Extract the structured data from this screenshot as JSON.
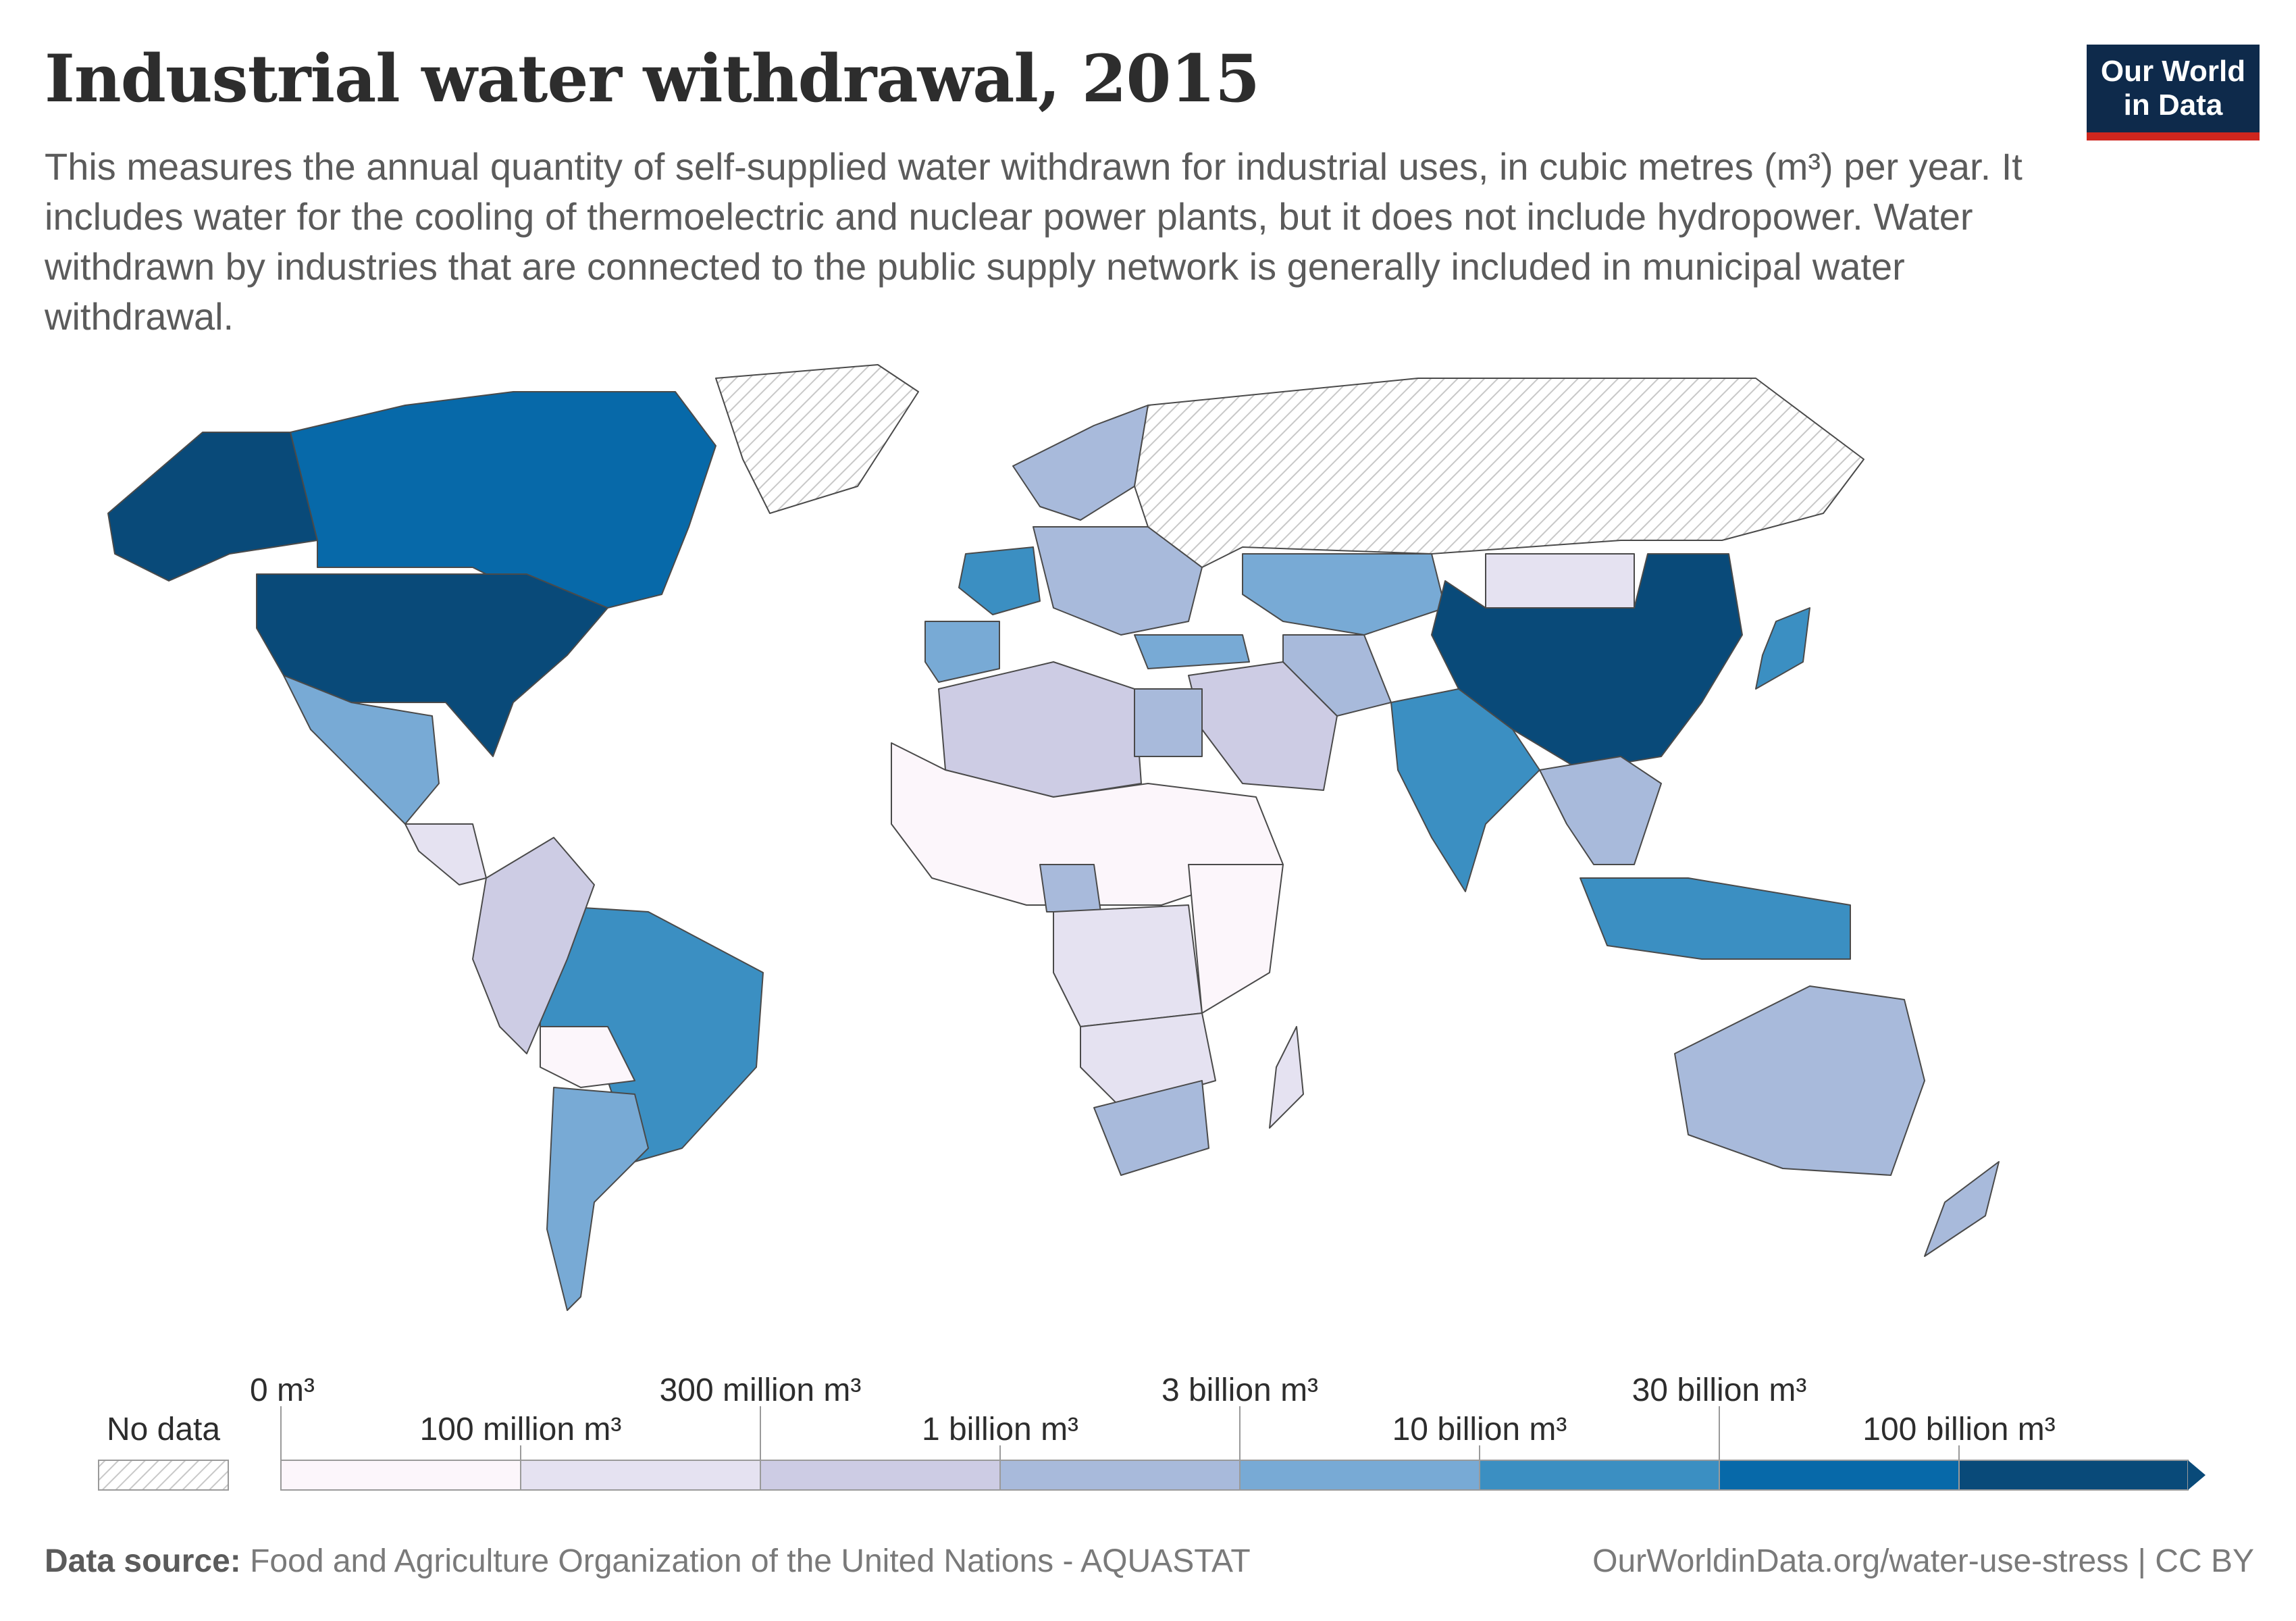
{
  "title": "Industrial water withdrawal, 2015",
  "subtitle": "This measures the annual quantity of self-supplied water withdrawn for industrial uses, in cubic metres (m³) per year. It includes water for the cooling of thermoelectric and nuclear power plants, but it does not include hydropower. Water withdrawn by industries that are connected to the public supply network is generally included in municipal water withdrawal.",
  "logo": {
    "line1": "Our World",
    "line2": "in Data"
  },
  "footer": {
    "source_label": "Data source:",
    "source_text": "Food and Agriculture Organization of the United Nations - AQUASTAT",
    "url": "OurWorldinData.org/water-use-stress | CC BY"
  },
  "legend": {
    "no_data_label": "No data",
    "no_data_color": "#e8e8e8",
    "bins": [
      {
        "label": "0 m³",
        "color": "#fcf6fb"
      },
      {
        "label": "100 million m³",
        "color": "#e5e2f1"
      },
      {
        "label": "300 million m³",
        "color": "#cdcce4"
      },
      {
        "label": "1 billion m³",
        "color": "#a8badb"
      },
      {
        "label": "3 billion m³",
        "color": "#78aad5"
      },
      {
        "label": "10 billion m³",
        "color": "#3b8fc2"
      },
      {
        "label": "30 billion m³",
        "color": "#0769a9"
      },
      {
        "label": "100 billion m³",
        "color": "#094a79"
      }
    ]
  },
  "map_data": {
    "type": "choropleth",
    "year": "2015",
    "regions": [
      {
        "id": "USA",
        "bin": 7
      },
      {
        "id": "Alaska",
        "bin": 7
      },
      {
        "id": "Canada",
        "bin": 6
      },
      {
        "id": "Greenland",
        "bin": -1
      },
      {
        "id": "Mexico",
        "bin": 4
      },
      {
        "id": "Central America",
        "bin": 1
      },
      {
        "id": "Brazil",
        "bin": 5
      },
      {
        "id": "Argentina",
        "bin": 4
      },
      {
        "id": "Andean states",
        "bin": 2
      },
      {
        "id": "Bolivia",
        "bin": 0
      },
      {
        "id": "France",
        "bin": 5
      },
      {
        "id": "Iberia",
        "bin": 4
      },
      {
        "id": "Central Europe",
        "bin": 3
      },
      {
        "id": "Scandinavia",
        "bin": 3
      },
      {
        "id": "Russia",
        "bin": -1
      },
      {
        "id": "Kazakhstan",
        "bin": 4
      },
      {
        "id": "Turkey",
        "bin": 4
      },
      {
        "id": "Middle East",
        "bin": 2
      },
      {
        "id": "Iran",
        "bin": 3
      },
      {
        "id": "India",
        "bin": 5
      },
      {
        "id": "China",
        "bin": 7
      },
      {
        "id": "Mongolia",
        "bin": 1
      },
      {
        "id": "Japan",
        "bin": 5
      },
      {
        "id": "Southeast Asia",
        "bin": 3
      },
      {
        "id": "Indonesia",
        "bin": 5
      },
      {
        "id": "Australia",
        "bin": 3
      },
      {
        "id": "New Zealand",
        "bin": 3
      },
      {
        "id": "North Africa",
        "bin": 2
      },
      {
        "id": "Egypt",
        "bin": 3
      },
      {
        "id": "Sahel",
        "bin": 0
      },
      {
        "id": "Nigeria",
        "bin": 3
      },
      {
        "id": "Central Africa",
        "bin": 1
      },
      {
        "id": "East Africa",
        "bin": 0
      },
      {
        "id": "Southern Africa",
        "bin": 1
      },
      {
        "id": "South Africa",
        "bin": 3
      },
      {
        "id": "Madagascar",
        "bin": 1
      }
    ]
  }
}
